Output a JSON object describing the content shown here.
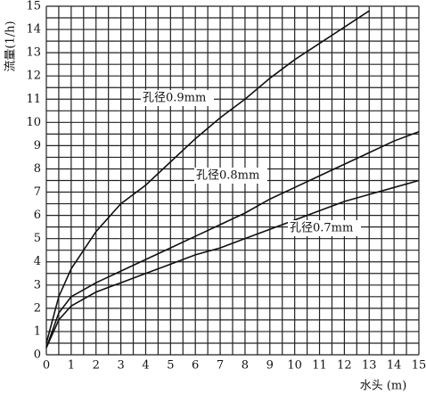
{
  "chart_data": {
    "type": "line",
    "x_label": "水头 (m)",
    "y_label": "流量(1/h)",
    "x": [
      0,
      0.5,
      1,
      1.5,
      2,
      2.5,
      3,
      4,
      5,
      6,
      7,
      8,
      9,
      10,
      11,
      12,
      13,
      14,
      15
    ],
    "series": [
      {
        "name": "孔径0.9mm",
        "color": "#111111",
        "values": [
          0.5,
          2.5,
          3.7,
          4.5,
          5.3,
          5.9,
          6.5,
          7.3,
          8.3,
          9.3,
          10.2,
          11.0,
          11.9,
          12.7,
          13.4,
          14.1,
          14.8,
          null,
          null
        ]
      },
      {
        "name": "孔径0.8mm",
        "color": "#111111",
        "values": [
          0.3,
          1.8,
          2.5,
          2.8,
          3.1,
          3.35,
          3.6,
          4.1,
          4.6,
          5.1,
          5.6,
          6.1,
          6.7,
          7.2,
          7.7,
          8.2,
          8.7,
          9.2,
          9.6
        ]
      },
      {
        "name": "孔径0.7mm",
        "color": "#111111",
        "values": [
          0.3,
          1.5,
          2.1,
          2.4,
          2.7,
          2.9,
          3.1,
          3.5,
          3.9,
          4.3,
          4.6,
          5.0,
          5.4,
          5.8,
          6.2,
          6.6,
          6.9,
          7.2,
          7.5
        ]
      }
    ],
    "xlim": [
      0,
      15
    ],
    "ylim": [
      0,
      15
    ],
    "xticks": [
      0,
      1,
      2,
      3,
      4,
      5,
      6,
      7,
      8,
      9,
      10,
      11,
      12,
      13,
      14,
      15
    ],
    "yticks": [
      0,
      1,
      2,
      3,
      4,
      5,
      6,
      7,
      8,
      9,
      10,
      11,
      12,
      13,
      14,
      15
    ],
    "grid": true
  }
}
